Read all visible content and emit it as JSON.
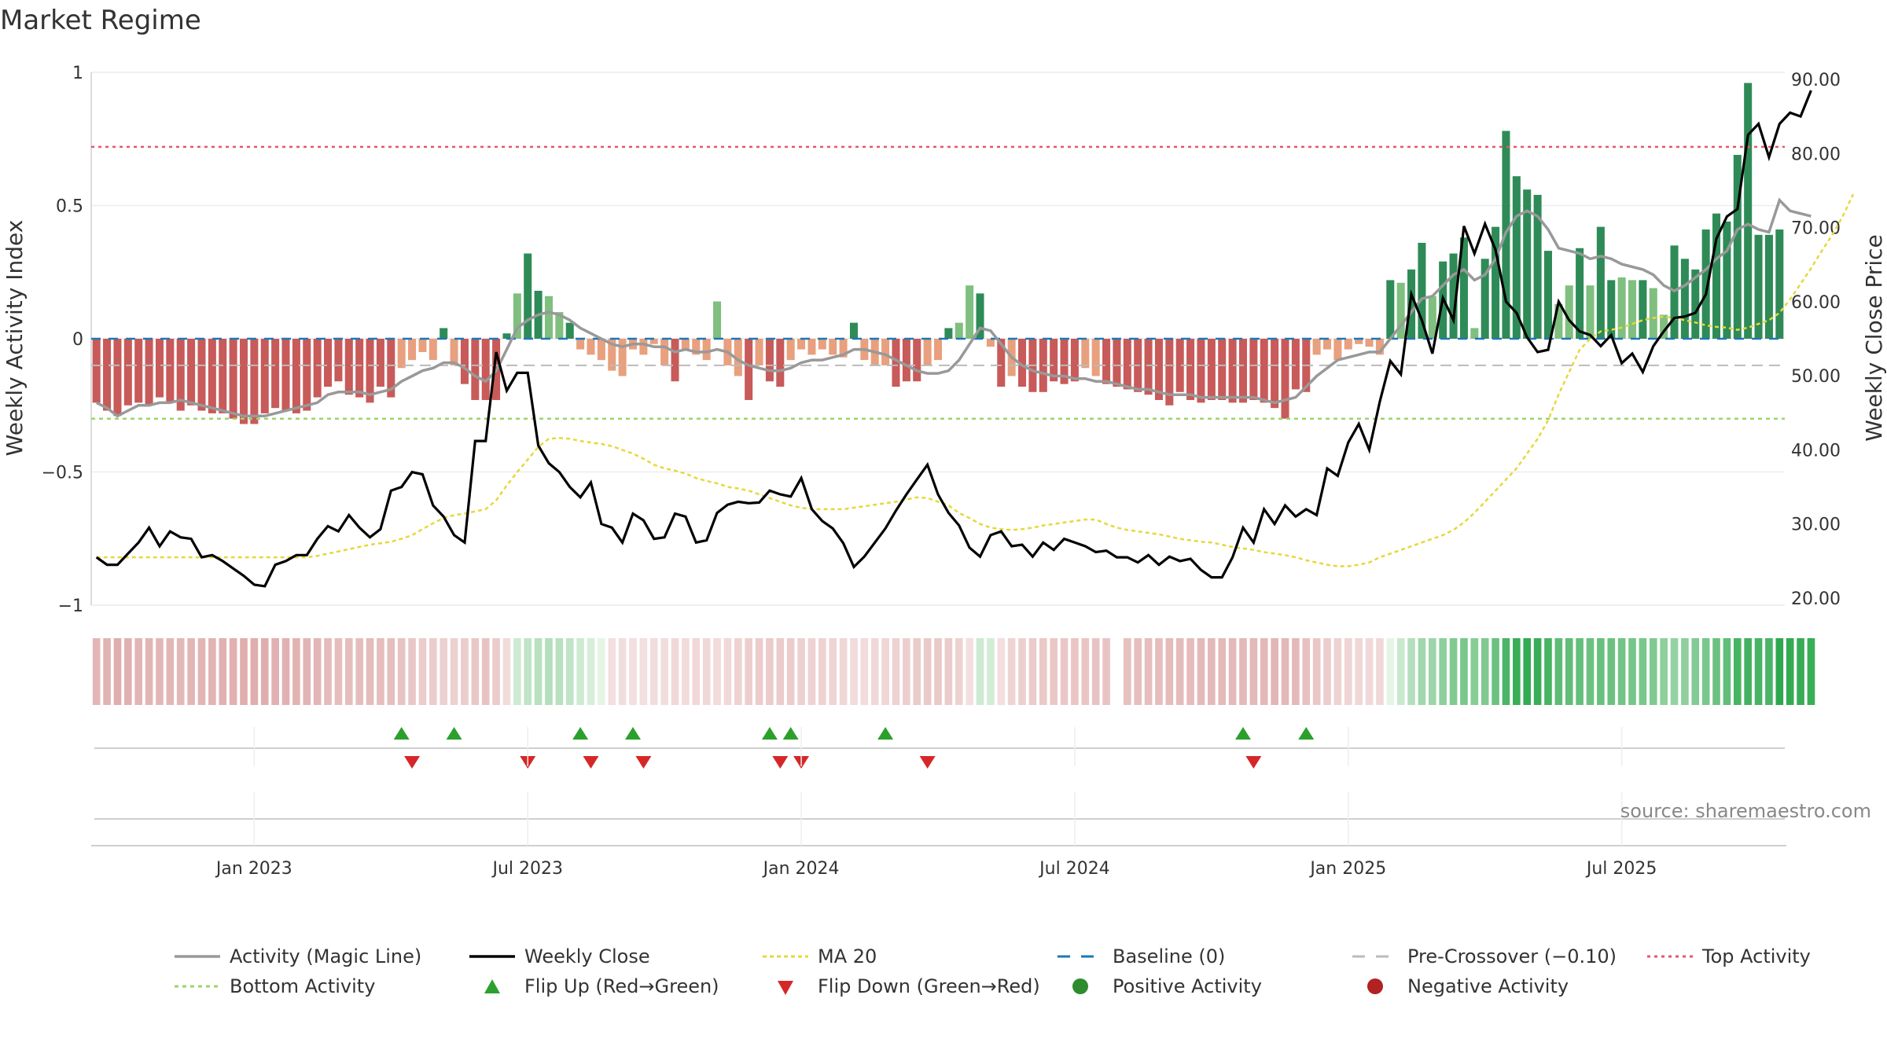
{
  "title": "Market Regime",
  "source_note": "source: sharemaestro.com",
  "colors": {
    "pos_strong": "#2e8b57",
    "pos_weak": "#7fbf7f",
    "neg_strong": "#c85a5a",
    "neg_weak": "#e8a07e",
    "magic_line": "#999999",
    "close_line": "#000000",
    "ma_line": "#e6d83a",
    "baseline": "#1f77b4",
    "pre_crossover": "#bbbbbb",
    "top_activity": "#e05a6a",
    "bottom_activity": "#9ed36a",
    "flip_up": "#2ca02c",
    "flip_down": "#d62728"
  },
  "chart_data": {
    "type": "bar",
    "title": "Market Regime",
    "ylabel": "Weekly Activity Index",
    "y2label": "Weekly Close Price",
    "ylim": [
      -1,
      1
    ],
    "y2lim": [
      20,
      90
    ],
    "yticks": [
      "1",
      "0.5",
      "0",
      "−0.5",
      "−1"
    ],
    "yticks_values": [
      1,
      0.5,
      0,
      -0.5,
      -1
    ],
    "y2ticks": [
      "90.00",
      "80.00",
      "70.00",
      "60.00",
      "50.00",
      "40.00",
      "30.00",
      "20.00"
    ],
    "y2ticks_values": [
      90,
      80,
      70,
      60,
      50,
      40,
      30,
      20
    ],
    "xticks": [
      "Jan 2023",
      "Jul 2023",
      "Jan 2024",
      "Jul 2024",
      "Jan 2025",
      "Jul 2025"
    ],
    "xticks_week_index": [
      15,
      41,
      67,
      93,
      119,
      145
    ],
    "top_activity_level": 0.72,
    "bottom_activity_level": -0.3,
    "pre_crossover_level": -0.1,
    "baseline_level": 0,
    "legend": [
      "Activity (Magic Line)",
      "Weekly Close",
      "MA 20",
      "Baseline (0)",
      "Pre-Crossover (−0.10)",
      "Top Activity",
      "Bottom Activity",
      "Flip Up (Red→Green)",
      "Flip Down (Green→Red)",
      "Positive Activity",
      "Negative Activity"
    ],
    "activity": [
      -0.24,
      -0.27,
      -0.29,
      -0.25,
      -0.24,
      -0.25,
      -0.22,
      -0.24,
      -0.27,
      -0.25,
      -0.27,
      -0.28,
      -0.28,
      -0.3,
      -0.32,
      -0.32,
      -0.28,
      -0.26,
      -0.27,
      -0.28,
      -0.27,
      -0.22,
      -0.18,
      -0.16,
      -0.21,
      -0.22,
      -0.24,
      -0.18,
      -0.22,
      -0.11,
      -0.08,
      -0.05,
      -0.08,
      0.04,
      -0.1,
      -0.17,
      -0.23,
      -0.23,
      -0.23,
      0.02,
      0.17,
      0.32,
      0.18,
      0.16,
      0.1,
      0.06,
      -0.04,
      -0.06,
      -0.08,
      -0.12,
      -0.14,
      -0.04,
      -0.06,
      -0.02,
      -0.1,
      -0.16,
      -0.04,
      -0.06,
      -0.08,
      0.14,
      -0.1,
      -0.14,
      -0.23,
      -0.1,
      -0.16,
      -0.18,
      -0.08,
      -0.04,
      -0.06,
      -0.04,
      -0.06,
      -0.07,
      0.06,
      -0.08,
      -0.1,
      -0.1,
      -0.18,
      -0.16,
      -0.16,
      -0.1,
      -0.08,
      0.04,
      0.06,
      0.2,
      0.17,
      -0.03,
      -0.18,
      -0.14,
      -0.18,
      -0.2,
      -0.2,
      -0.16,
      -0.17,
      -0.16,
      -0.11,
      -0.14,
      -0.17,
      -0.18,
      -0.19,
      -0.2,
      -0.21,
      -0.23,
      -0.25,
      -0.2,
      -0.23,
      -0.24,
      -0.23,
      -0.23,
      -0.24,
      -0.24,
      -0.23,
      -0.24,
      -0.26,
      -0.3,
      -0.19,
      -0.2,
      -0.06,
      -0.04,
      -0.08,
      -0.04,
      -0.02,
      -0.03,
      -0.06,
      0.22,
      0.21,
      0.26,
      0.36,
      0.16,
      0.29,
      0.32,
      0.38,
      0.04,
      0.3,
      0.42,
      0.78,
      0.61,
      0.56,
      0.54,
      0.33,
      0.13,
      0.2,
      0.34,
      0.2,
      0.42,
      0.22,
      0.23,
      0.22,
      0.22,
      0.19,
      0.09,
      0.35,
      0.3,
      0.26,
      0.41,
      0.47,
      0.44,
      0.69,
      0.96,
      0.39,
      0.39,
      0.41
    ],
    "magic_line": [
      -0.24,
      -0.26,
      -0.29,
      -0.27,
      -0.25,
      -0.25,
      -0.24,
      -0.24,
      -0.23,
      -0.24,
      -0.25,
      -0.26,
      -0.27,
      -0.28,
      -0.29,
      -0.29,
      -0.29,
      -0.28,
      -0.27,
      -0.26,
      -0.25,
      -0.24,
      -0.21,
      -0.2,
      -0.2,
      -0.2,
      -0.21,
      -0.2,
      -0.19,
      -0.16,
      -0.14,
      -0.12,
      -0.11,
      -0.09,
      -0.09,
      -0.11,
      -0.14,
      -0.16,
      -0.12,
      -0.04,
      0.04,
      0.07,
      0.09,
      0.1,
      0.09,
      0.07,
      0.04,
      0.02,
      0,
      -0.02,
      -0.03,
      -0.02,
      -0.02,
      -0.03,
      -0.03,
      -0.05,
      -0.04,
      -0.05,
      -0.05,
      -0.04,
      -0.05,
      -0.08,
      -0.1,
      -0.11,
      -0.12,
      -0.12,
      -0.11,
      -0.09,
      -0.08,
      -0.08,
      -0.07,
      -0.06,
      -0.04,
      -0.04,
      -0.05,
      -0.06,
      -0.08,
      -0.1,
      -0.12,
      -0.13,
      -0.13,
      -0.12,
      -0.08,
      -0.02,
      0.04,
      0.03,
      -0.02,
      -0.07,
      -0.1,
      -0.12,
      -0.13,
      -0.14,
      -0.14,
      -0.15,
      -0.15,
      -0.16,
      -0.16,
      -0.17,
      -0.18,
      -0.19,
      -0.19,
      -0.2,
      -0.21,
      -0.21,
      -0.21,
      -0.22,
      -0.22,
      -0.22,
      -0.22,
      -0.22,
      -0.22,
      -0.23,
      -0.24,
      -0.23,
      -0.22,
      -0.18,
      -0.14,
      -0.11,
      -0.08,
      -0.07,
      -0.06,
      -0.05,
      -0.05,
      0,
      0.05,
      0.1,
      0.15,
      0.16,
      0.2,
      0.24,
      0.26,
      0.22,
      0.24,
      0.3,
      0.4,
      0.46,
      0.48,
      0.46,
      0.41,
      0.34,
      0.33,
      0.32,
      0.3,
      0.31,
      0.3,
      0.28,
      0.27,
      0.26,
      0.24,
      0.2,
      0.18,
      0.2,
      0.23,
      0.26,
      0.3,
      0.33,
      0.41,
      0.43,
      0.41,
      0.4,
      0.52,
      0.48,
      0.47,
      0.46
    ],
    "close": [
      25.5,
      24.5,
      24.5,
      26,
      27.5,
      29.5,
      27,
      29,
      28.2,
      28,
      25.5,
      25.8,
      25,
      24,
      23,
      21.8,
      21.6,
      24.5,
      25,
      25.8,
      25.8,
      28,
      29.7,
      29,
      31.2,
      29.5,
      28.2,
      29.3,
      34.5,
      35,
      37,
      36.7,
      32.5,
      31,
      28.5,
      27.5,
      41.2,
      41.2,
      53.2,
      48,
      50.4,
      50.4,
      40.6,
      38.2,
      37,
      35,
      33.6,
      35.6,
      30,
      29.5,
      27.5,
      31.4,
      30.5,
      28,
      28.2,
      31.4,
      31,
      27.5,
      27.8,
      31.5,
      32.6,
      33,
      32.8,
      32.9,
      34.5,
      34,
      33.7,
      36.2,
      32,
      30.4,
      29.4,
      27.4,
      24.2,
      25.6,
      27.5,
      29.4,
      31.8,
      34,
      36,
      38,
      34,
      31.5,
      29.8,
      26.8,
      25.6,
      28.5,
      29,
      27,
      27.2,
      25.6,
      27.5,
      26.5,
      28,
      27.5,
      27,
      26.2,
      26.4,
      25.5,
      25.5,
      24.8,
      25.8,
      24.5,
      25.6,
      25,
      25.3,
      23.8,
      22.8,
      22.8,
      25.5,
      29.5,
      27.5,
      32,
      30,
      32.5,
      31,
      32,
      31.2,
      37.5,
      36.5,
      41,
      43.5,
      40,
      46.5,
      52,
      50.2,
      61,
      57.5,
      53,
      60.5,
      57.5,
      70.2,
      66.5,
      70.5,
      67,
      60,
      58.5,
      55.2,
      53.2,
      53.5,
      60,
      57.5,
      56,
      55.5,
      54,
      55.5,
      51.7,
      53,
      50.5,
      54,
      56,
      57.8,
      58,
      58.5,
      61,
      68.5,
      71.5,
      72.5,
      82.5,
      84,
      79.5,
      84,
      85.5,
      85,
      88.5
    ],
    "ma20": [
      25.5,
      25.5,
      25.5,
      25.5,
      25.5,
      25.5,
      25.5,
      25.5,
      25.5,
      25.5,
      25.5,
      25.5,
      25.5,
      25.5,
      25.5,
      25.5,
      25.5,
      25.5,
      25.5,
      25.5,
      25.5,
      25.7,
      26,
      26.3,
      26.6,
      26.9,
      27.2,
      27.4,
      27.6,
      28,
      28.5,
      29.3,
      30.1,
      30.8,
      31.2,
      31.4,
      31.7,
      32,
      33.2,
      35.2,
      37,
      38.7,
      40.4,
      41.5,
      41.6,
      41.5,
      41.2,
      41,
      40.8,
      40.5,
      40,
      39.5,
      38.8,
      38,
      37.5,
      37.2,
      36.8,
      36.2,
      35.8,
      35.5,
      35,
      34.8,
      34.5,
      34,
      33.5,
      33,
      32.5,
      32.2,
      32,
      32,
      32,
      32,
      32.2,
      32.4,
      32.6,
      32.8,
      33,
      33.3,
      33.6,
      33.5,
      33,
      32.5,
      31.5,
      30.8,
      30,
      29.5,
      29.3,
      29.2,
      29.3,
      29.5,
      29.8,
      30,
      30.2,
      30.4,
      30.6,
      30.6,
      30,
      29.5,
      29.2,
      29,
      28.8,
      28.6,
      28.3,
      28,
      27.8,
      27.6,
      27.5,
      27.2,
      26.9,
      26.7,
      26.5,
      26.2,
      26,
      25.8,
      25.5,
      25.1,
      24.8,
      24.5,
      24.3,
      24.3,
      24.5,
      24.8,
      25.5,
      26,
      26.5,
      27,
      27.5,
      28,
      28.5,
      29.2,
      30.2,
      31.5,
      33,
      34.5,
      36,
      37.5,
      39.5,
      41.5,
      44,
      47.5,
      50.5,
      53.5,
      55,
      56,
      56.2,
      56.5,
      57,
      57.5,
      57.8,
      58,
      57.8,
      57.5,
      57.2,
      56.8,
      56.6,
      56.5,
      56.2,
      56.5,
      57,
      57.5,
      58.5,
      60.3,
      62.4,
      64.5,
      66.8,
      69,
      71.5,
      74.5
    ],
    "flip_up_weeks": [
      29,
      34,
      46,
      51,
      64,
      66,
      75,
      109,
      115
    ],
    "flip_down_weeks": [
      30,
      41,
      47,
      52,
      65,
      67,
      79,
      110
    ]
  }
}
